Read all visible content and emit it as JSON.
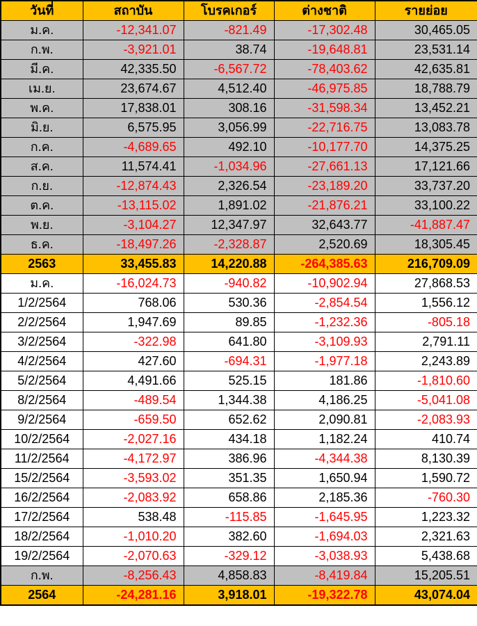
{
  "colors": {
    "header_bg": "#ffc000",
    "total_row_bg": "#ffc000",
    "section_row_bg": "#c0c0c0",
    "plain_row_bg": "#ffffff",
    "negative_value": "#ff0000",
    "positive_value": "#000000",
    "border": "#000000"
  },
  "chart_data": {
    "type": "table",
    "columns": [
      "วันที่",
      "สถาบัน",
      "โบรคเกอร์",
      "ต่างชาติ",
      "รายย่อย"
    ],
    "rows": [
      {
        "label": "ม.ค.",
        "values": [
          "-12,341.07",
          "-821.49",
          "-17,302.48",
          "30,465.05"
        ],
        "style": "gray"
      },
      {
        "label": "ก.พ.",
        "values": [
          "-3,921.01",
          "38.74",
          "-19,648.81",
          "23,531.14"
        ],
        "style": "gray"
      },
      {
        "label": "มี.ค.",
        "values": [
          "42,335.50",
          "-6,567.72",
          "-78,403.62",
          "42,635.81"
        ],
        "style": "gray"
      },
      {
        "label": "เม.ย.",
        "values": [
          "23,674.67",
          "4,512.40",
          "-46,975.85",
          "18,788.79"
        ],
        "style": "gray"
      },
      {
        "label": "พ.ค.",
        "values": [
          "17,838.01",
          "308.16",
          "-31,598.34",
          "13,452.21"
        ],
        "style": "gray"
      },
      {
        "label": "มิ.ย.",
        "values": [
          "6,575.95",
          "3,056.99",
          "-22,716.75",
          "13,083.78"
        ],
        "style": "gray"
      },
      {
        "label": "ก.ค.",
        "values": [
          "-4,689.65",
          "492.10",
          "-10,177.70",
          "14,375.25"
        ],
        "style": "gray"
      },
      {
        "label": "ส.ค.",
        "values": [
          "11,574.41",
          "-1,034.96",
          "-27,661.13",
          "17,121.66"
        ],
        "style": "gray"
      },
      {
        "label": "ก.ย.",
        "values": [
          "-12,874.43",
          "2,326.54",
          "-23,189.20",
          "33,737.20"
        ],
        "style": "gray"
      },
      {
        "label": "ต.ค.",
        "values": [
          "-13,115.02",
          "1,891.02",
          "-21,876.21",
          "33,100.22"
        ],
        "style": "gray"
      },
      {
        "label": "พ.ย.",
        "values": [
          "-3,104.27",
          "12,347.97",
          "32,643.77",
          "-41,887.47"
        ],
        "style": "gray"
      },
      {
        "label": "ธ.ค.",
        "values": [
          "-18,497.26",
          "-2,328.87",
          "2,520.69",
          "18,305.45"
        ],
        "style": "gray"
      },
      {
        "label": "2563",
        "values": [
          "33,455.83",
          "14,220.88",
          "-264,385.63",
          "216,709.09"
        ],
        "style": "total"
      },
      {
        "label": "ม.ค.",
        "values": [
          "-16,024.73",
          "-940.82",
          "-10,902.94",
          "27,868.53"
        ],
        "style": "white"
      },
      {
        "label": "1/2/2564",
        "values": [
          "768.06",
          "530.36",
          "-2,854.54",
          "1,556.12"
        ],
        "style": "white"
      },
      {
        "label": "2/2/2564",
        "values": [
          "1,947.69",
          "89.85",
          "-1,232.36",
          "-805.18"
        ],
        "style": "white"
      },
      {
        "label": "3/2/2564",
        "values": [
          "-322.98",
          "641.80",
          "-3,109.93",
          "2,791.11"
        ],
        "style": "white"
      },
      {
        "label": "4/2/2564",
        "values": [
          "427.60",
          "-694.31",
          "-1,977.18",
          "2,243.89"
        ],
        "style": "white"
      },
      {
        "label": "5/2/2564",
        "values": [
          "4,491.66",
          "525.15",
          "181.86",
          "-1,810.60"
        ],
        "style": "white"
      },
      {
        "label": "8/2/2564",
        "values": [
          "-489.54",
          "1,344.38",
          "4,186.25",
          "-5,041.08"
        ],
        "style": "white"
      },
      {
        "label": "9/2/2564",
        "values": [
          "-659.50",
          "652.62",
          "2,090.81",
          "-2,083.93"
        ],
        "style": "white"
      },
      {
        "label": "10/2/2564",
        "values": [
          "-2,027.16",
          "434.18",
          "1,182.24",
          "410.74"
        ],
        "style": "white"
      },
      {
        "label": "11/2/2564",
        "values": [
          "-4,172.97",
          "386.96",
          "-4,344.38",
          "8,130.39"
        ],
        "style": "white"
      },
      {
        "label": "15/2/2564",
        "values": [
          "-3,593.02",
          "351.35",
          "1,650.94",
          "1,590.72"
        ],
        "style": "white"
      },
      {
        "label": "16/2/2564",
        "values": [
          "-2,083.92",
          "658.86",
          "2,185.36",
          "-760.30"
        ],
        "style": "white"
      },
      {
        "label": "17/2/2564",
        "values": [
          "538.48",
          "-115.85",
          "-1,645.95",
          "1,223.32"
        ],
        "style": "white"
      },
      {
        "label": "18/2/2564",
        "values": [
          "-1,010.20",
          "382.60",
          "-1,694.03",
          "2,321.63"
        ],
        "style": "white"
      },
      {
        "label": "19/2/2564",
        "values": [
          "-2,070.63",
          "-329.12",
          "-3,038.93",
          "5,438.68"
        ],
        "style": "white"
      },
      {
        "label": "ก.พ.",
        "values": [
          "-8,256.43",
          "4,858.83",
          "-8,419.84",
          "15,205.51"
        ],
        "style": "gray"
      },
      {
        "label": "2564",
        "values": [
          "-24,281.16",
          "3,918.01",
          "-19,322.78",
          "43,074.04"
        ],
        "style": "total"
      }
    ]
  }
}
